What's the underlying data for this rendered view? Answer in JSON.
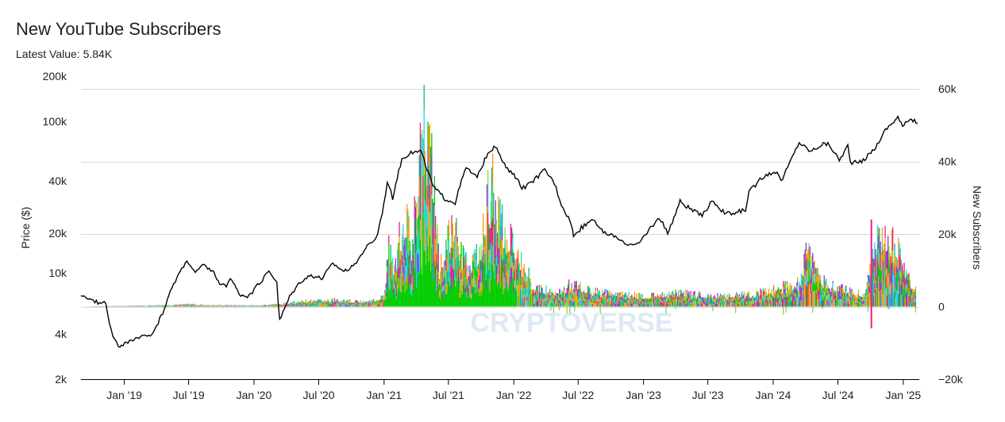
{
  "header": {
    "title": "New YouTube Subscribers",
    "latest_value": "Latest Value: 5.84K"
  },
  "watermark": "CRYPTOVERSE",
  "chart_data": {
    "type": "line",
    "title": "New YouTube Subscribers",
    "subtitle": "Latest Value: 5.84K",
    "x_axis": {
      "tick_labels": [
        "Jan '19",
        "Jul '19",
        "Jan '20",
        "Jul '20",
        "Jan '21",
        "Jul '21",
        "Jan '22",
        "Jul '22",
        "Jan '23",
        "Jul '23",
        "Jan '24",
        "Jul '24",
        "Jan '25"
      ],
      "tick_dates": [
        "2019-01-01",
        "2019-07-01",
        "2020-01-01",
        "2020-07-01",
        "2021-01-01",
        "2021-07-01",
        "2022-01-01",
        "2022-07-01",
        "2023-01-01",
        "2023-07-01",
        "2024-01-01",
        "2024-07-01",
        "2025-01-01"
      ],
      "range": [
        "2018-09-01",
        "2025-02-15"
      ]
    },
    "y_axis_left": {
      "label": "Price ($)",
      "scale": "log",
      "tick_labels": [
        "2k",
        "4k",
        "10k",
        "20k",
        "40k",
        "100k",
        "200k"
      ],
      "tick_values": [
        2000,
        4000,
        10000,
        20000,
        40000,
        100000,
        200000
      ],
      "range": [
        2000,
        200000
      ]
    },
    "y_axis_right": {
      "label": "New Subscribers",
      "scale": "linear",
      "tick_labels": [
        "−20k",
        "0",
        "20k",
        "40k",
        "60k"
      ],
      "tick_values": [
        -20000,
        0,
        20000,
        40000,
        60000
      ],
      "range": [
        -20000,
        60000
      ]
    },
    "grid": "horizontal",
    "series": [
      {
        "name": "Price ($)",
        "axis": "left",
        "type": "line",
        "color": "#000000",
        "points": [
          [
            "2018-09-01",
            7000
          ],
          [
            "2018-10-10",
            6500
          ],
          [
            "2018-11-10",
            6300
          ],
          [
            "2018-11-25",
            4200
          ],
          [
            "2018-12-15",
            3300
          ],
          [
            "2019-01-20",
            3600
          ],
          [
            "2019-02-20",
            3800
          ],
          [
            "2019-03-20",
            4000
          ],
          [
            "2019-04-15",
            5200
          ],
          [
            "2019-05-15",
            8000
          ],
          [
            "2019-06-26",
            12500
          ],
          [
            "2019-07-20",
            10000
          ],
          [
            "2019-08-10",
            11500
          ],
          [
            "2019-09-10",
            10200
          ],
          [
            "2019-09-26",
            8300
          ],
          [
            "2019-10-15",
            8200
          ],
          [
            "2019-10-26",
            9400
          ],
          [
            "2019-11-20",
            7300
          ],
          [
            "2019-12-18",
            7000
          ],
          [
            "2020-01-20",
            8800
          ],
          [
            "2020-02-12",
            10300
          ],
          [
            "2020-03-05",
            8800
          ],
          [
            "2020-03-13",
            4900
          ],
          [
            "2020-04-10",
            7000
          ],
          [
            "2020-05-10",
            8800
          ],
          [
            "2020-06-10",
            9700
          ],
          [
            "2020-07-10",
            9200
          ],
          [
            "2020-08-10",
            11800
          ],
          [
            "2020-09-10",
            10300
          ],
          [
            "2020-10-10",
            11400
          ],
          [
            "2020-11-10",
            15500
          ],
          [
            "2020-12-10",
            18500
          ],
          [
            "2020-12-31",
            29000
          ],
          [
            "2021-01-10",
            40000
          ],
          [
            "2021-01-25",
            32000
          ],
          [
            "2021-02-20",
            56000
          ],
          [
            "2021-03-13",
            61000
          ],
          [
            "2021-04-14",
            63500
          ],
          [
            "2021-05-19",
            37000
          ],
          [
            "2021-06-22",
            31500
          ],
          [
            "2021-07-20",
            30000
          ],
          [
            "2021-08-20",
            49000
          ],
          [
            "2021-09-20",
            42000
          ],
          [
            "2021-10-20",
            62000
          ],
          [
            "2021-11-10",
            67500
          ],
          [
            "2021-12-10",
            49000
          ],
          [
            "2022-01-10",
            41500
          ],
          [
            "2022-01-24",
            36000
          ],
          [
            "2022-02-20",
            39000
          ],
          [
            "2022-03-29",
            47500
          ],
          [
            "2022-04-25",
            39000
          ],
          [
            "2022-05-15",
            29500
          ],
          [
            "2022-06-13",
            22500
          ],
          [
            "2022-06-18",
            19000
          ],
          [
            "2022-07-10",
            21500
          ],
          [
            "2022-08-13",
            24500
          ],
          [
            "2022-09-10",
            20000
          ],
          [
            "2022-10-10",
            19200
          ],
          [
            "2022-11-09",
            16500
          ],
          [
            "2022-12-20",
            16800
          ],
          [
            "2023-01-20",
            21500
          ],
          [
            "2023-02-15",
            24500
          ],
          [
            "2023-03-10",
            20000
          ],
          [
            "2023-04-14",
            30500
          ],
          [
            "2023-05-20",
            27000
          ],
          [
            "2023-06-15",
            25000
          ],
          [
            "2023-07-13",
            31000
          ],
          [
            "2023-08-17",
            26000
          ],
          [
            "2023-09-10",
            25800
          ],
          [
            "2023-10-15",
            27500
          ],
          [
            "2023-10-25",
            34500
          ],
          [
            "2023-12-08",
            43500
          ],
          [
            "2024-01-12",
            46500
          ],
          [
            "2024-01-23",
            39500
          ],
          [
            "2024-02-15",
            52000
          ],
          [
            "2024-03-14",
            72500
          ],
          [
            "2024-04-15",
            63000
          ],
          [
            "2024-05-21",
            71000
          ],
          [
            "2024-06-07",
            70000
          ],
          [
            "2024-07-05",
            55000
          ],
          [
            "2024-07-29",
            69000
          ],
          [
            "2024-08-05",
            53000
          ],
          [
            "2024-09-06",
            53500
          ],
          [
            "2024-10-15",
            67000
          ],
          [
            "2024-11-12",
            88000
          ],
          [
            "2024-12-05",
            100000
          ],
          [
            "2024-12-17",
            107000
          ],
          [
            "2024-12-30",
            92000
          ],
          [
            "2025-01-20",
            105000
          ],
          [
            "2025-02-10",
            97000
          ]
        ]
      },
      {
        "name": "New Subscribers",
        "axis": "right",
        "type": "stacked-area",
        "colors": [
          "#00cc00",
          "#8fd14f",
          "#ff9900",
          "#e91e8c",
          "#22d3ee",
          "#7c3aed",
          "#f59e0b",
          "#10b981"
        ],
        "envelope": [
          [
            "2018-09-01",
            0
          ],
          [
            "2018-11-10",
            200
          ],
          [
            "2019-01-20",
            300
          ],
          [
            "2019-05-15",
            500
          ],
          [
            "2019-06-26",
            900
          ],
          [
            "2019-08-15",
            500
          ],
          [
            "2020-01-15",
            400
          ],
          [
            "2020-03-13",
            800
          ],
          [
            "2020-06-01",
            2000
          ],
          [
            "2020-08-10",
            2200
          ],
          [
            "2020-11-10",
            1500
          ],
          [
            "2020-12-31",
            3200
          ],
          [
            "2021-01-10",
            20000
          ],
          [
            "2021-01-30",
            12000
          ],
          [
            "2021-02-21",
            31000
          ],
          [
            "2021-03-20",
            22000
          ],
          [
            "2021-04-10",
            45000
          ],
          [
            "2021-04-20",
            58000
          ],
          [
            "2021-04-28",
            60000
          ],
          [
            "2021-05-15",
            42000
          ],
          [
            "2021-06-05",
            12000
          ],
          [
            "2021-06-25",
            20000
          ],
          [
            "2021-07-15",
            28000
          ],
          [
            "2021-08-05",
            18000
          ],
          [
            "2021-08-25",
            12000
          ],
          [
            "2021-09-25",
            18000
          ],
          [
            "2021-10-20",
            36000
          ],
          [
            "2021-11-01",
            40000
          ],
          [
            "2021-11-15",
            34000
          ],
          [
            "2021-12-15",
            23000
          ],
          [
            "2022-01-10",
            17000
          ],
          [
            "2022-02-01",
            12000
          ],
          [
            "2022-03-01",
            6000
          ],
          [
            "2022-05-01",
            5000
          ],
          [
            "2022-06-15",
            7500
          ],
          [
            "2022-08-01",
            5000
          ],
          [
            "2022-11-01",
            4000
          ],
          [
            "2023-01-20",
            3500
          ],
          [
            "2023-04-01",
            4500
          ],
          [
            "2023-08-01",
            3500
          ],
          [
            "2023-11-01",
            4000
          ],
          [
            "2024-01-01",
            5500
          ],
          [
            "2024-03-14",
            8000
          ],
          [
            "2024-04-01",
            20000
          ],
          [
            "2024-05-01",
            10000
          ],
          [
            "2024-06-01",
            7000
          ],
          [
            "2024-08-05",
            5000
          ],
          [
            "2024-09-15",
            4000
          ],
          [
            "2024-10-20",
            25000
          ],
          [
            "2024-11-15",
            20000
          ],
          [
            "2024-12-05",
            21000
          ],
          [
            "2024-12-25",
            17000
          ],
          [
            "2025-01-20",
            8000
          ],
          [
            "2025-02-10",
            5840
          ]
        ],
        "latest_value": 5840
      }
    ]
  }
}
